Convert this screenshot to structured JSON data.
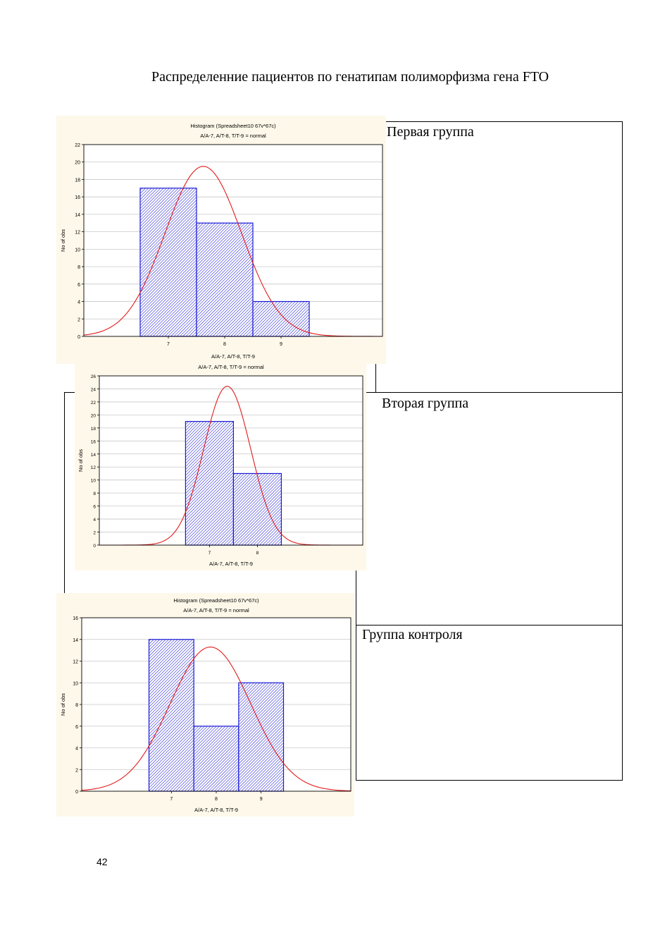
{
  "page": {
    "heading": "Распределенние пациентов по генатипам полиморфизма гена FTO",
    "page_number": "42"
  },
  "groups": [
    {
      "label": "Первая группа"
    },
    {
      "label": "Вторая группа"
    },
    {
      "label": "Группа контроля"
    }
  ],
  "colors": {
    "bar_stroke": "#1a1ad6",
    "bar_hatch": "#1a1ad6",
    "curve": "#e21b1b",
    "chart_bg": "#fdf8e9",
    "grid": "#c8c8c8"
  },
  "chart_data": [
    {
      "type": "bar",
      "title": "Histogram (Spreadsheet10 67v*67c)",
      "subtitle": "A/A-7, A/T-8, T/T-9 = normal",
      "xlabel": "A/A-7, A/T-8, T/T-9",
      "ylabel": "No of obs",
      "categories": [
        "7",
        "8",
        "9"
      ],
      "values": [
        17,
        13,
        4
      ],
      "ylim": [
        0,
        22
      ],
      "yticks": [
        0,
        2,
        4,
        6,
        8,
        10,
        12,
        14,
        16,
        18,
        20,
        22
      ],
      "xlim": [
        5.5,
        10.8
      ],
      "normal_curve": {
        "mean": 7.62,
        "sd": 0.68,
        "peak": 19.5
      },
      "grid": true
    },
    {
      "type": "bar",
      "title": "",
      "subtitle": "A/A-7, A/T-8, T/T-9 = normal",
      "xlabel": "A/A-7, A/T-8, T/T-9",
      "ylabel": "No of obs",
      "categories": [
        "7",
        "8"
      ],
      "values": [
        19,
        11
      ],
      "ylim": [
        0,
        26
      ],
      "yticks": [
        0,
        2,
        4,
        6,
        8,
        10,
        12,
        14,
        16,
        18,
        20,
        22,
        24,
        26
      ],
      "xlim": [
        4.7,
        10.2
      ],
      "normal_curve": {
        "mean": 7.37,
        "sd": 0.49,
        "peak": 24.4
      },
      "grid": true
    },
    {
      "type": "bar",
      "title": "Histogram (Spreadsheet10 67v*67c)",
      "subtitle": "A/A-7, A/T-8, T/T-9 = normal",
      "xlabel": "A/A-7, A/T-8, T/T-9",
      "ylabel": "No of obs",
      "categories": [
        "7",
        "8",
        "9"
      ],
      "values": [
        14,
        6,
        10
      ],
      "ylim": [
        0,
        16
      ],
      "yticks": [
        0,
        2,
        4,
        6,
        8,
        10,
        12,
        14,
        16
      ],
      "xlim": [
        5.0,
        11.0
      ],
      "normal_curve": {
        "mean": 7.87,
        "sd": 0.9,
        "peak": 13.3
      },
      "grid": true
    }
  ]
}
